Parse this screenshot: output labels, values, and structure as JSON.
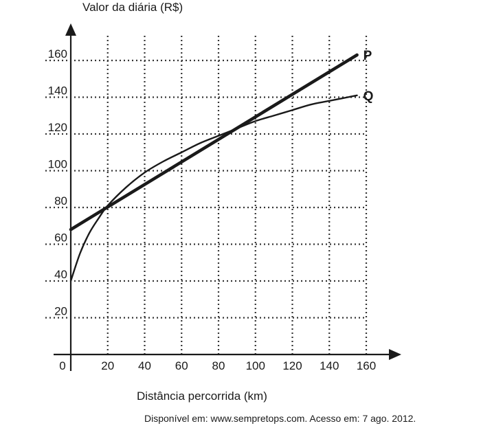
{
  "chart_data": {
    "type": "line",
    "ylabel": "Valor da diária (R$)",
    "xlabel": "Distância percorrida (km)",
    "source": "Disponível em: www.sempretops.com. Acesso em: 7 ago. 2012.",
    "x_ticks": [
      0,
      20,
      40,
      60,
      80,
      100,
      120,
      140,
      160
    ],
    "y_ticks": [
      20,
      40,
      60,
      80,
      100,
      120,
      140,
      160
    ],
    "xlim": [
      0,
      170
    ],
    "ylim": [
      0,
      170
    ],
    "grid": "dotted",
    "series": [
      {
        "name": "P",
        "x": [
          0,
          155
        ],
        "y": [
          68,
          163
        ]
      },
      {
        "name": "Q",
        "x": [
          0,
          5,
          10,
          15,
          20,
          30,
          40,
          50,
          60,
          70,
          80,
          90,
          100,
          110,
          120,
          130,
          140,
          155
        ],
        "y": [
          40,
          55,
          66,
          74,
          81,
          91,
          99,
          105,
          110,
          115,
          119,
          123,
          127,
          130,
          133,
          136,
          138,
          141
        ]
      }
    ]
  }
}
